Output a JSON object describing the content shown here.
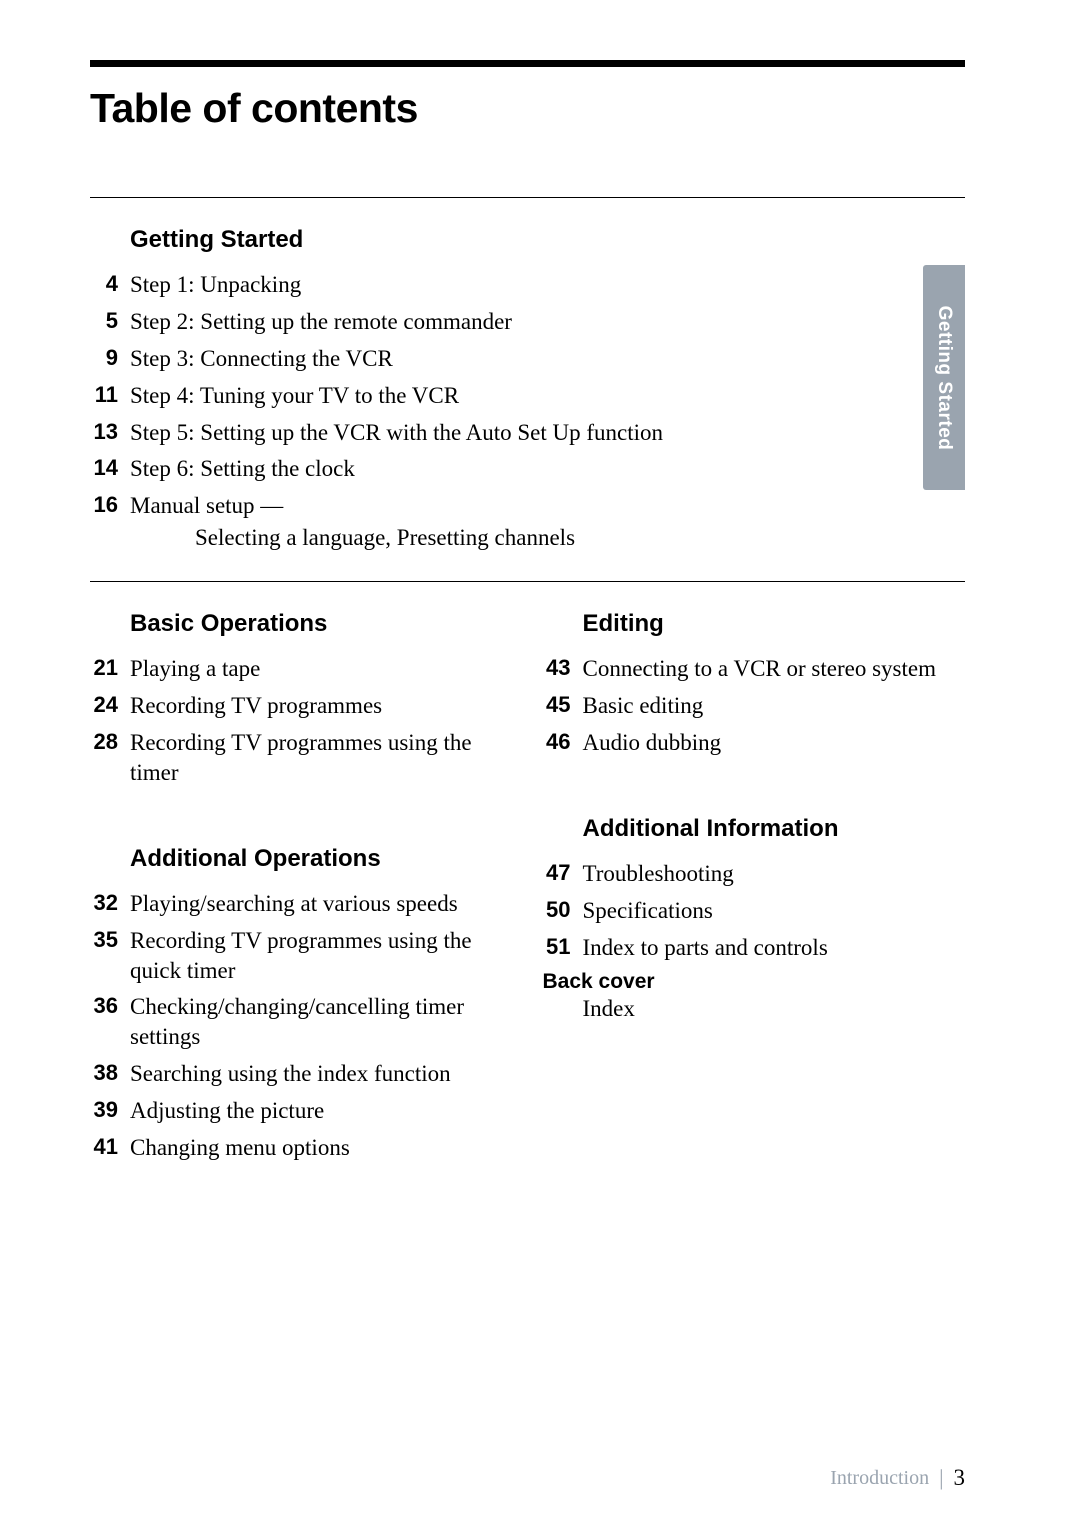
{
  "title": "Table of contents",
  "side_tab": "Getting Started",
  "footer_label": "Introduction",
  "footer_page": "3",
  "sections": {
    "getting_started": {
      "heading": "Getting Started",
      "items": [
        {
          "page": "4",
          "text": "Step 1: Unpacking"
        },
        {
          "page": "5",
          "text": "Step 2: Setting up the remote commander"
        },
        {
          "page": "9",
          "text": "Step 3: Connecting the VCR"
        },
        {
          "page": "11",
          "text": "Step 4: Tuning your TV to the VCR"
        },
        {
          "page": "13",
          "text": "Step 5: Setting up the VCR with the Auto Set Up function"
        },
        {
          "page": "14",
          "text": "Step 6: Setting the clock"
        },
        {
          "page": "16",
          "text": "Manual setup —"
        }
      ],
      "subline": "Selecting a language, Presetting channels"
    },
    "basic_operations": {
      "heading": "Basic Operations",
      "items": [
        {
          "page": "21",
          "text": "Playing a tape"
        },
        {
          "page": "24",
          "text": "Recording TV programmes"
        },
        {
          "page": "28",
          "text": "Recording TV programmes using the timer"
        }
      ]
    },
    "additional_operations": {
      "heading": "Additional Operations",
      "items": [
        {
          "page": "32",
          "text": "Playing/searching at various speeds"
        },
        {
          "page": "35",
          "text": "Recording TV programmes using the quick timer"
        },
        {
          "page": "36",
          "text": "Checking/changing/cancelling timer settings"
        },
        {
          "page": "38",
          "text": "Searching using the index function"
        },
        {
          "page": "39",
          "text": "Adjusting the picture"
        },
        {
          "page": "41",
          "text": "Changing menu options"
        }
      ]
    },
    "editing": {
      "heading": "Editing",
      "items": [
        {
          "page": "43",
          "text": "Connecting to a VCR or stereo system"
        },
        {
          "page": "45",
          "text": "Basic editing"
        },
        {
          "page": "46",
          "text": "Audio dubbing"
        }
      ]
    },
    "additional_information": {
      "heading": "Additional Information",
      "items": [
        {
          "page": "47",
          "text": "Troubleshooting"
        },
        {
          "page": "50",
          "text": "Specifications"
        },
        {
          "page": "51",
          "text": "Index to parts and controls"
        }
      ],
      "back_cover_label": "Back cover",
      "back_cover_text": "Index"
    }
  },
  "style": {
    "title_fontsize": 41,
    "section_head_fontsize": 24,
    "body_fontsize": 23,
    "page_num_fontsize": 22,
    "side_tab_color": "#9aa4af",
    "side_tab_text_color": "#ffffff",
    "rule_color": "#000000",
    "footer_muted_color": "#9aa4af"
  }
}
